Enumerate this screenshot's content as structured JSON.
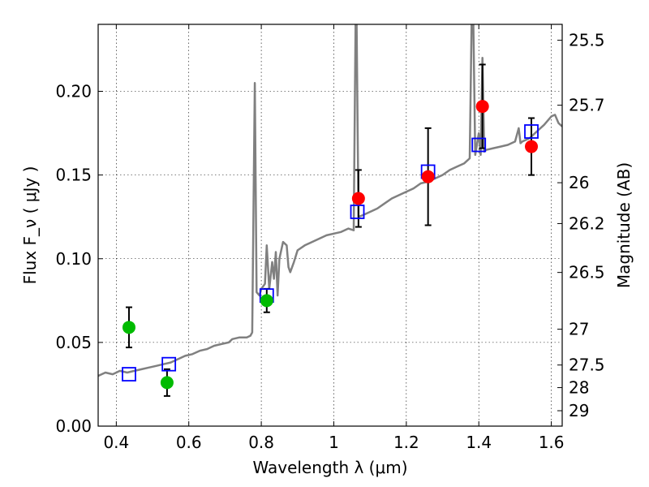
{
  "chart_data": {
    "type": "scatter",
    "xlabel": "Wavelength  λ (μm)",
    "ylabel": "Flux  F_ν  ( μJy )",
    "ylabel_right": "Magnitude (AB)",
    "xlim": [
      0.35,
      1.63
    ],
    "ylim": [
      0.0,
      0.24
    ],
    "grid": true,
    "x_ticks": [
      0.4,
      0.6,
      0.8,
      1.0,
      1.2,
      1.4,
      1.6
    ],
    "x_tick_labels": [
      "0.4",
      "0.6",
      "0.8",
      "1",
      "1.2",
      "1.4",
      "1.6"
    ],
    "y_ticks": [
      0.0,
      0.05,
      0.1,
      0.15,
      0.2
    ],
    "y_tick_labels": [
      "0.00",
      "0.05",
      "0.10",
      "0.15",
      "0.20"
    ],
    "right_ticks": [
      {
        "label": "25.5",
        "flux": 0.2305
      },
      {
        "label": "25.7",
        "flux": 0.1917
      },
      {
        "label": "26",
        "flux": 0.1454
      },
      {
        "label": "26.2",
        "flux": 0.121
      },
      {
        "label": "26.5",
        "flux": 0.0918
      },
      {
        "label": "27",
        "flux": 0.0579
      },
      {
        "label": "27.5",
        "flux": 0.0365
      },
      {
        "label": "28",
        "flux": 0.023
      },
      {
        "label": "29",
        "flux": 0.0092
      }
    ],
    "series": [
      {
        "name": "model-spectrum",
        "kind": "line",
        "color": "#808080",
        "points": [
          [
            0.35,
            0.03
          ],
          [
            0.37,
            0.032
          ],
          [
            0.39,
            0.031
          ],
          [
            0.41,
            0.033
          ],
          [
            0.43,
            0.032
          ],
          [
            0.45,
            0.033
          ],
          [
            0.47,
            0.034
          ],
          [
            0.49,
            0.035
          ],
          [
            0.51,
            0.036
          ],
          [
            0.53,
            0.037
          ],
          [
            0.55,
            0.038
          ],
          [
            0.57,
            0.04
          ],
          [
            0.59,
            0.042
          ],
          [
            0.61,
            0.043
          ],
          [
            0.63,
            0.045
          ],
          [
            0.65,
            0.046
          ],
          [
            0.67,
            0.048
          ],
          [
            0.69,
            0.049
          ],
          [
            0.71,
            0.05
          ],
          [
            0.72,
            0.052
          ],
          [
            0.74,
            0.053
          ],
          [
            0.76,
            0.053
          ],
          [
            0.77,
            0.054
          ],
          [
            0.775,
            0.056
          ],
          [
            0.782,
            0.205
          ],
          [
            0.787,
            0.08
          ],
          [
            0.795,
            0.078
          ],
          [
            0.8,
            0.082
          ],
          [
            0.81,
            0.085
          ],
          [
            0.815,
            0.108
          ],
          [
            0.822,
            0.082
          ],
          [
            0.83,
            0.098
          ],
          [
            0.835,
            0.088
          ],
          [
            0.84,
            0.104
          ],
          [
            0.845,
            0.078
          ],
          [
            0.85,
            0.1
          ],
          [
            0.86,
            0.11
          ],
          [
            0.87,
            0.108
          ],
          [
            0.875,
            0.095
          ],
          [
            0.88,
            0.092
          ],
          [
            0.89,
            0.098
          ],
          [
            0.9,
            0.105
          ],
          [
            0.92,
            0.108
          ],
          [
            0.94,
            0.11
          ],
          [
            0.96,
            0.112
          ],
          [
            0.98,
            0.114
          ],
          [
            1.0,
            0.115
          ],
          [
            1.02,
            0.116
          ],
          [
            1.04,
            0.118
          ],
          [
            1.055,
            0.117
          ],
          [
            1.06,
            0.24
          ],
          [
            1.063,
            0.24
          ],
          [
            1.068,
            0.125
          ],
          [
            1.08,
            0.126
          ],
          [
            1.1,
            0.128
          ],
          [
            1.12,
            0.13
          ],
          [
            1.14,
            0.133
          ],
          [
            1.16,
            0.136
          ],
          [
            1.18,
            0.138
          ],
          [
            1.2,
            0.14
          ],
          [
            1.22,
            0.142
          ],
          [
            1.24,
            0.145
          ],
          [
            1.26,
            0.146
          ],
          [
            1.28,
            0.148
          ],
          [
            1.3,
            0.15
          ],
          [
            1.32,
            0.153
          ],
          [
            1.34,
            0.155
          ],
          [
            1.36,
            0.157
          ],
          [
            1.37,
            0.159
          ],
          [
            1.375,
            0.16
          ],
          [
            1.38,
            0.24
          ],
          [
            1.385,
            0.24
          ],
          [
            1.39,
            0.162
          ],
          [
            1.4,
            0.175
          ],
          [
            1.405,
            0.162
          ],
          [
            1.41,
            0.22
          ],
          [
            1.415,
            0.164
          ],
          [
            1.42,
            0.165
          ],
          [
            1.44,
            0.166
          ],
          [
            1.46,
            0.167
          ],
          [
            1.48,
            0.168
          ],
          [
            1.5,
            0.17
          ],
          [
            1.51,
            0.178
          ],
          [
            1.515,
            0.169
          ],
          [
            1.52,
            0.17
          ],
          [
            1.54,
            0.172
          ],
          [
            1.56,
            0.176
          ],
          [
            1.58,
            0.18
          ],
          [
            1.6,
            0.185
          ],
          [
            1.61,
            0.186
          ],
          [
            1.62,
            0.181
          ],
          [
            1.63,
            0.179
          ]
        ]
      },
      {
        "name": "green-points",
        "kind": "points",
        "color": "#00bb00",
        "points": [
          {
            "x": 0.435,
            "y": 0.059,
            "yerr": 0.012
          },
          {
            "x": 0.54,
            "y": 0.026,
            "yerr": 0.008
          },
          {
            "x": 0.815,
            "y": 0.075,
            "yerr": 0.007
          }
        ]
      },
      {
        "name": "red-points",
        "kind": "points",
        "color": "#ff0000",
        "points": [
          {
            "x": 1.068,
            "y": 0.136,
            "yerr": 0.017
          },
          {
            "x": 1.26,
            "y": 0.149,
            "yerr": 0.029
          },
          {
            "x": 1.41,
            "y": 0.191,
            "yerr": 0.025
          },
          {
            "x": 1.545,
            "y": 0.167,
            "yerr": 0.017
          }
        ]
      },
      {
        "name": "model-photometry",
        "kind": "squares",
        "color": "#0000ff",
        "points": [
          {
            "x": 0.435,
            "y": 0.031
          },
          {
            "x": 0.545,
            "y": 0.037
          },
          {
            "x": 0.815,
            "y": 0.078
          },
          {
            "x": 1.065,
            "y": 0.128
          },
          {
            "x": 1.26,
            "y": 0.152
          },
          {
            "x": 1.4,
            "y": 0.168
          },
          {
            "x": 1.545,
            "y": 0.176
          }
        ]
      }
    ]
  }
}
